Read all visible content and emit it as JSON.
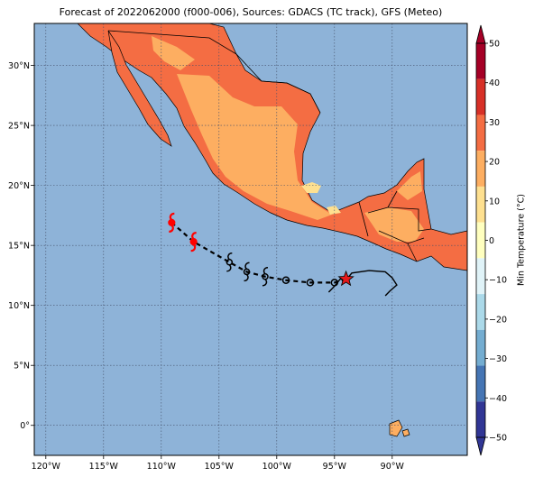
{
  "title": "Forecast of 2022062000 (f000-006), Sources: GDACS (TC track), GFS (Meteo)",
  "map": {
    "lon_range": [
      -121,
      -83.5
    ],
    "lat_range": [
      -2.5,
      33.5
    ],
    "lon_ticks": [
      -120,
      -115,
      -110,
      -105,
      -100,
      -95,
      -90
    ],
    "lon_tick_labels": [
      "120°W",
      "115°W",
      "110°W",
      "105°W",
      "100°W",
      "95°W",
      "90°W"
    ],
    "lat_ticks": [
      0,
      5,
      10,
      15,
      20,
      25,
      30
    ],
    "lat_tick_labels": [
      "0°",
      "5°N",
      "10°N",
      "15°N",
      "20°N",
      "25°N",
      "30°N"
    ],
    "grid": true,
    "colors": {
      "ocean": "#8eb3d8",
      "land_20_30": "#f46d43",
      "land_10_20": "#fdae61",
      "land_0_10": "#fee090",
      "track": "#000000",
      "cyclone_forecast": "#ff0000",
      "current_position": "#e41a1c"
    }
  },
  "colorbar": {
    "label": "Min Temperature (°C)",
    "tick_labels": [
      "50",
      "40",
      "30",
      "20",
      "10",
      "0",
      "−10",
      "−20",
      "−30",
      "−40",
      "−50"
    ],
    "levels": [
      -50,
      -40,
      -30,
      -20,
      -10,
      0,
      10,
      20,
      30,
      40,
      50
    ],
    "colors": [
      "#313695",
      "#4575b4",
      "#74add1",
      "#abd9e9",
      "#e0f3f8",
      "#ffffbf",
      "#fee090",
      "#fdae61",
      "#f46d43",
      "#d73027",
      "#a50026"
    ]
  },
  "track": {
    "past_path": [
      [
        -95.5,
        11.1
      ],
      [
        -95,
        11.6
      ],
      [
        -94.5,
        12.2
      ],
      [
        -94,
        12.1
      ],
      [
        -93.5,
        12.7
      ],
      [
        -92,
        12.9
      ],
      [
        -90.6,
        12.8
      ],
      [
        -90,
        12.3
      ],
      [
        -89.6,
        11.7
      ],
      [
        -90.2,
        11.2
      ],
      [
        -90.6,
        10.8
      ]
    ],
    "current_position": [
      -94,
      12.2
    ],
    "forecast_points": [
      {
        "lon": -95,
        "lat": 11.9,
        "symbol": "depression",
        "color": "#000000"
      },
      {
        "lon": -97.1,
        "lat": 11.9,
        "symbol": "depression",
        "color": "#000000"
      },
      {
        "lon": -99.2,
        "lat": 12.1,
        "symbol": "depression",
        "color": "#000000"
      },
      {
        "lon": -101,
        "lat": 12.4,
        "symbol": "storm",
        "color": "#000000"
      },
      {
        "lon": -102.6,
        "lat": 12.8,
        "symbol": "storm",
        "color": "#000000"
      },
      {
        "lon": -104.1,
        "lat": 13.6,
        "symbol": "storm",
        "color": "#000000"
      },
      {
        "lon": -107.2,
        "lat": 15.3,
        "symbol": "hurricane",
        "color": "#ff0000"
      },
      {
        "lon": -109.1,
        "lat": 16.9,
        "symbol": "hurricane",
        "color": "#ff0000"
      }
    ]
  }
}
